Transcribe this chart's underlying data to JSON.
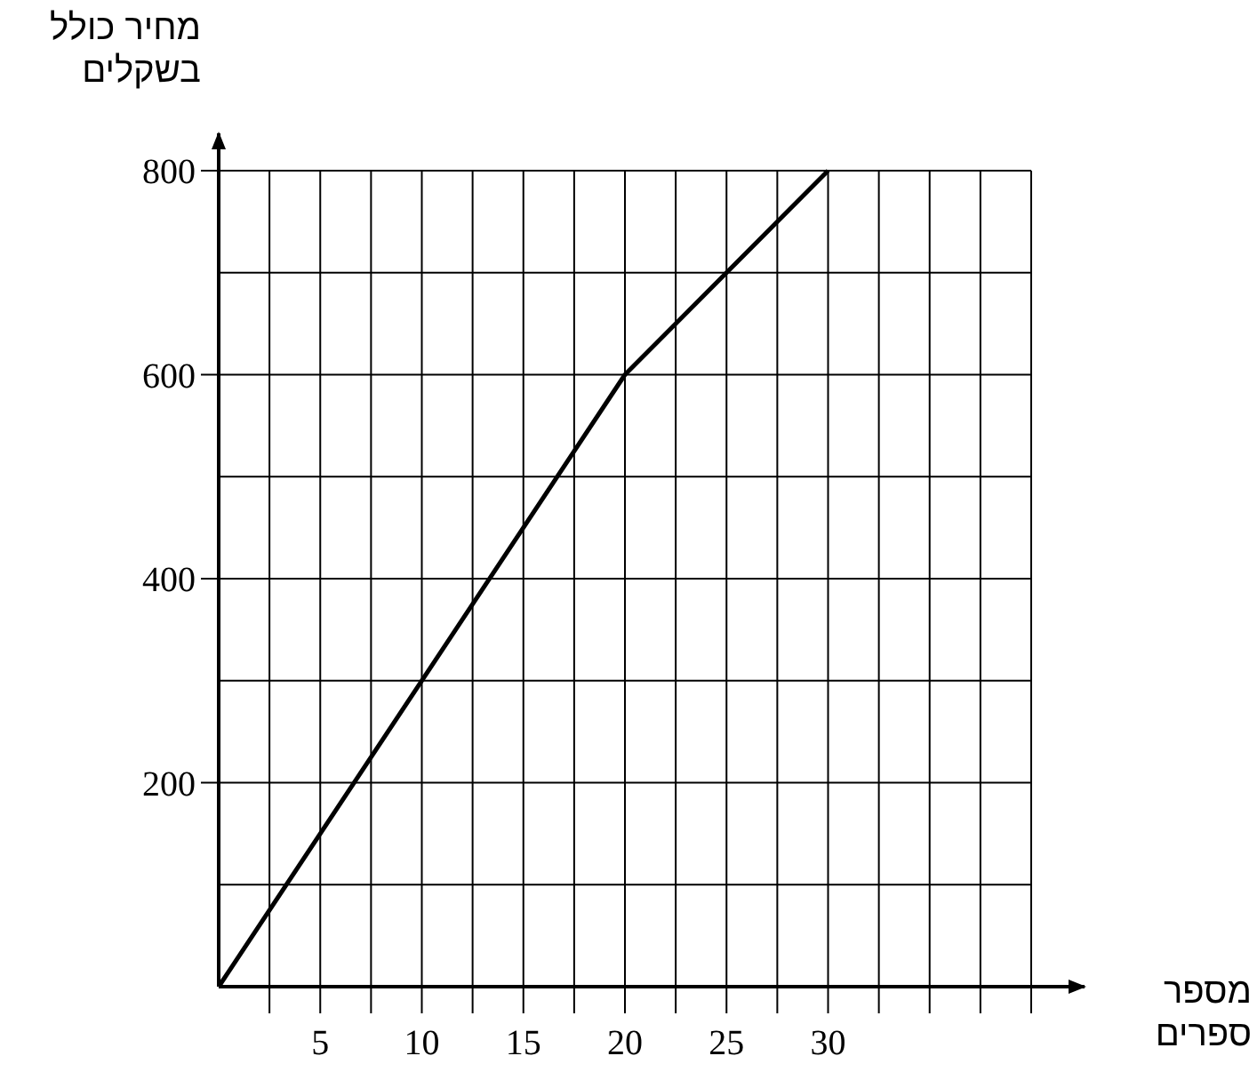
{
  "chart_data": {
    "type": "line",
    "xlabel": "מספר ספרים",
    "ylabel": "מחיר כולל בשקלים",
    "x": [
      0,
      20,
      30
    ],
    "values": [
      0,
      600,
      800
    ],
    "color": "#000000",
    "xlim": [
      0,
      40
    ],
    "ylim": [
      0,
      800
    ],
    "xticks": [
      {
        "value": 2.5,
        "label": null
      },
      5,
      {
        "value": 7.5,
        "label": null
      },
      10,
      {
        "value": 12.5,
        "label": null
      },
      15,
      {
        "value": 17.5,
        "label": null
      },
      20,
      {
        "value": 22.5,
        "label": null
      },
      25,
      {
        "value": 27.5,
        "label": null
      },
      30,
      {
        "value": 32.5,
        "label": null
      },
      {
        "value": 35,
        "label": null
      },
      {
        "value": 37.5,
        "label": null
      },
      {
        "value": 40,
        "label": null
      }
    ],
    "yticks": [
      {
        "value": 100,
        "label": null
      },
      200,
      {
        "value": 300,
        "label": null
      },
      400,
      {
        "value": 500,
        "label": null
      },
      600,
      {
        "value": 700,
        "label": null
      },
      800
    ],
    "grid": true
  }
}
